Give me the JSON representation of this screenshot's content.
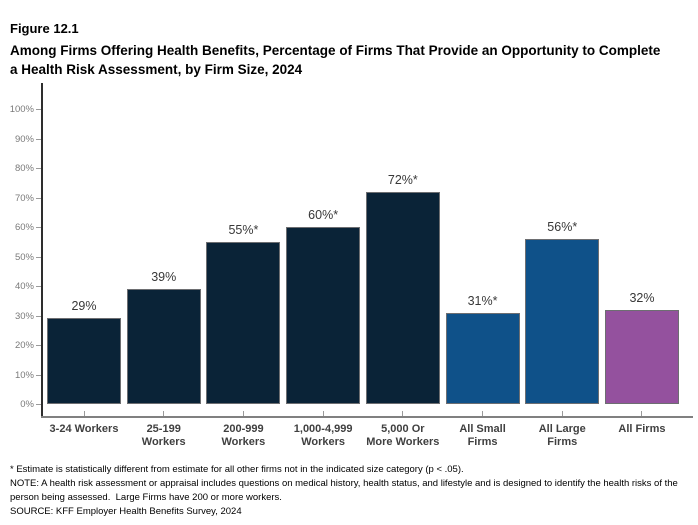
{
  "header": {
    "figure_label": "Figure 12.1",
    "title": "Among Firms Offering Health Benefits, Percentage of Firms That Provide an Opportunity to Complete a Health Risk Assessment, by Firm Size, 2024"
  },
  "chart_data": {
    "type": "bar",
    "title": "Among Firms Offering Health Benefits, Percentage of Firms That Provide an Opportunity to Complete a Health Risk Assessment, by Firm Size, 2024",
    "categories": [
      "3-24 Workers",
      "25-199\nWorkers",
      "200-999\nWorkers",
      "1,000-4,999\nWorkers",
      "5,000 Or\nMore Workers",
      "All Small\nFirms",
      "All Large\nFirms",
      "All Firms"
    ],
    "values": [
      29,
      39,
      55,
      60,
      72,
      31,
      56,
      32
    ],
    "value_labels": [
      "29%",
      "39%",
      "55%*",
      "60%*",
      "72%*",
      "31%*",
      "56%*",
      "32%"
    ],
    "bar_colors": [
      "#0a2337",
      "#0a2337",
      "#0a2337",
      "#0a2337",
      "#0a2337",
      "#0f5189",
      "#0f5189",
      "#94519e"
    ],
    "xlabel": "",
    "ylabel": "",
    "ylim": [
      0,
      100
    ],
    "y_tick_labels": [
      "0%",
      "10%",
      "20%",
      "30%",
      "40%",
      "50%",
      "60%",
      "70%",
      "80%",
      "90%",
      "100%"
    ],
    "grid": false,
    "legend": "none"
  },
  "colors": {
    "navy": "#0a2337",
    "blue": "#0f5189",
    "purple": "#94519e",
    "axis_line_gray": "#808080",
    "tick_label_gray": "#7a7a7a",
    "value_label_dark": "#383838"
  },
  "footnotes": {
    "statistical": "* Estimate is statistically different from estimate for all other firms not in the indicated size category (p < .05).",
    "note": "NOTE: A health risk assessment or appraisal includes questions on medical history, health status, and lifestyle and is designed to identify the health risks of the person being assessed.  Large Firms have 200 or more workers.",
    "source": "SOURCE: KFF Employer Health Benefits Survey, 2024"
  }
}
